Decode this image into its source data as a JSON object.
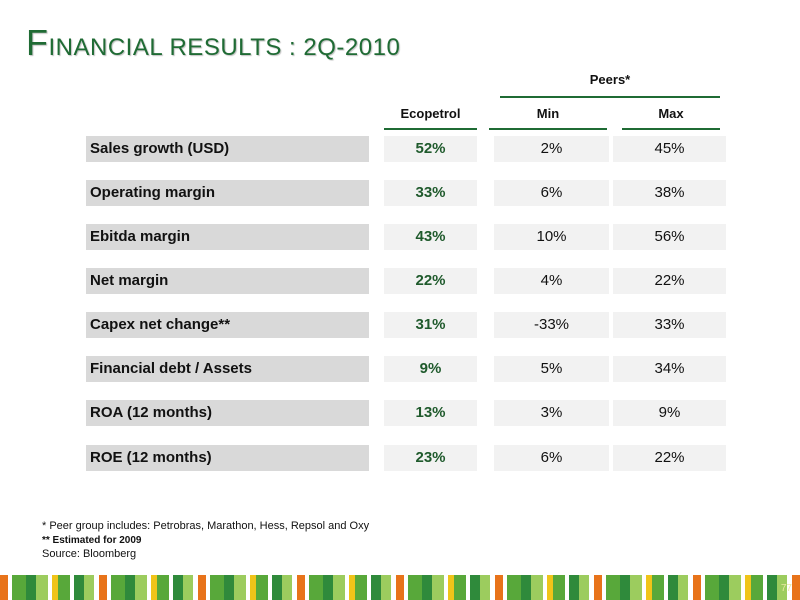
{
  "title": {
    "first_letter": "F",
    "rest": "INANCIAL RESULTS : 2Q-2010"
  },
  "headers": {
    "peers": "Peers*",
    "ecopetrol": "Ecopetrol",
    "min": "Min",
    "max": "Max"
  },
  "rows": [
    {
      "label": "Sales growth (USD)",
      "ecopetrol": "52%",
      "min": "2%",
      "max": "45%"
    },
    {
      "label": "Operating margin",
      "ecopetrol": "33%",
      "min": "6%",
      "max": "38%"
    },
    {
      "label": "Ebitda margin",
      "ecopetrol": "43%",
      "min": "10%",
      "max": "56%"
    },
    {
      "label": "Net margin",
      "ecopetrol": "22%",
      "min": "4%",
      "max": "22%"
    },
    {
      "label": "Capex net change**",
      "ecopetrol": "31%",
      "min": "-33%",
      "max": "33%"
    },
    {
      "label": "Financial debt / Assets",
      "ecopetrol": "9%",
      "min": "5%",
      "max": "34%"
    },
    {
      "label": "ROA (12 months)",
      "ecopetrol": "13%",
      "min": "3%",
      "max": "9%"
    },
    {
      "label": "ROE (12 months)",
      "ecopetrol": "23%",
      "min": "6%",
      "max": "22%"
    }
  ],
  "footnotes": {
    "peer_group": "* Peer group includes: Petrobras, Marathon, Hess, Repsol and Oxy",
    "estimated": "** Estimated for 2009",
    "source": "Source: Bloomberg"
  },
  "page_number": "77",
  "colors": {
    "title_green": "#1f6b34",
    "value_green": "#1f5a2c",
    "label_bg": "#d9d9d9",
    "value_bg": "#f2f2f2"
  }
}
